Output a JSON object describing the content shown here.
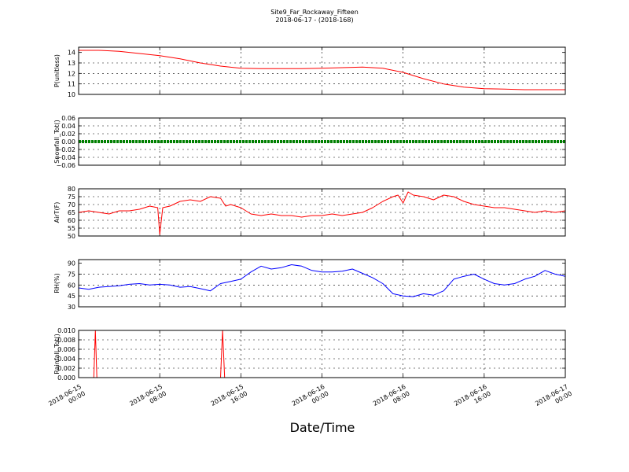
{
  "title_lines": [
    "Site9_Far_Rockaway_Fifteen",
    "2018-06-17 - (2018-168)"
  ],
  "xlabel": "Date/Time",
  "x_ticks": [
    {
      "h": 0,
      "line1": "2018-06-15",
      "line2": "00:00"
    },
    {
      "h": 8,
      "line1": "2018-06-15",
      "line2": "08:00"
    },
    {
      "h": 16,
      "line1": "2018-06-15",
      "line2": "16:00"
    },
    {
      "h": 24,
      "line1": "2018-06-16",
      "line2": "00:00"
    },
    {
      "h": 32,
      "line1": "2018-06-16",
      "line2": "08:00"
    },
    {
      "h": 40,
      "line1": "2018-06-16",
      "line2": "16:00"
    },
    {
      "h": 48,
      "line1": "2018-06-17",
      "line2": "00:00"
    }
  ],
  "chart_data": [
    {
      "type": "line",
      "ylabel": "P(unitless)",
      "color": "#ff0000",
      "ylim": [
        10,
        14.5
      ],
      "yticks": [
        10,
        11,
        12,
        13,
        14
      ],
      "ytick_labels": [
        "10",
        "11",
        "12",
        "13",
        "14"
      ],
      "x_hours": [
        0,
        2,
        4,
        6,
        8,
        10,
        12,
        14,
        16,
        18,
        20,
        22,
        24,
        26,
        28,
        30,
        32,
        34,
        36,
        38,
        40,
        42,
        44,
        46,
        48
      ],
      "values": [
        14.2,
        14.2,
        14.1,
        13.9,
        13.7,
        13.4,
        13.0,
        12.7,
        12.5,
        12.45,
        12.45,
        12.45,
        12.5,
        12.55,
        12.6,
        12.5,
        12.1,
        11.5,
        11.0,
        10.7,
        10.55,
        10.5,
        10.45,
        10.45,
        10.45
      ]
    },
    {
      "type": "line",
      "ylabel": "Snowfall_Tot()",
      "color": "#008000",
      "ylim": [
        -0.06,
        0.06
      ],
      "yticks": [
        -0.06,
        -0.04,
        -0.02,
        0,
        0.02,
        0.04,
        0.06
      ],
      "ytick_labels": [
        "−0.06",
        "−0.04",
        "−0.02",
        "0.00",
        "0.02",
        "0.04",
        "0.06"
      ],
      "x_hours": [
        0,
        48
      ],
      "values": [
        0,
        0
      ]
    },
    {
      "type": "line",
      "ylabel": "AirT(F)",
      "color": "#ff0000",
      "ylim": [
        50,
        80
      ],
      "yticks": [
        50,
        55,
        60,
        65,
        70,
        75,
        80
      ],
      "ytick_labels": [
        "50",
        "55",
        "60",
        "65",
        "70",
        "75",
        "80"
      ],
      "x_hours": [
        0,
        1,
        2,
        3,
        4,
        5,
        6,
        7,
        7.8,
        8,
        8.3,
        9,
        10,
        11,
        12,
        13,
        14,
        14.5,
        15,
        16,
        17,
        18,
        19,
        20,
        21,
        22,
        23,
        24,
        25,
        26,
        27,
        28,
        29,
        30,
        31,
        31.5,
        32,
        32.5,
        33,
        34,
        35,
        36,
        37,
        38,
        39,
        40,
        41,
        42,
        43,
        44,
        45,
        46,
        47,
        48
      ],
      "values": [
        65,
        66,
        65,
        64,
        66,
        66,
        67,
        69,
        68,
        51,
        68,
        69,
        72,
        73,
        72,
        75,
        74,
        69,
        70,
        68,
        64,
        63,
        64,
        63,
        63,
        62,
        63,
        63,
        64,
        63,
        64,
        65,
        68,
        72,
        75,
        76,
        71,
        78,
        76,
        75,
        73,
        76,
        75,
        72,
        70,
        69,
        68,
        68,
        67,
        66,
        65,
        66,
        65,
        66
      ]
    },
    {
      "type": "line",
      "ylabel": "RH(%)",
      "color": "#0000ff",
      "ylim": [
        30,
        95
      ],
      "yticks": [
        30,
        45,
        60,
        75,
        90
      ],
      "ytick_labels": [
        "30",
        "45",
        "60",
        "75",
        "90"
      ],
      "x_hours": [
        0,
        1,
        2,
        3,
        4,
        5,
        6,
        7,
        8,
        9,
        10,
        11,
        12,
        13,
        14,
        15,
        16,
        17,
        18,
        19,
        20,
        21,
        22,
        23,
        24,
        25,
        26,
        27,
        28,
        29,
        30,
        31,
        32,
        33,
        34,
        35,
        36,
        37,
        38,
        39,
        40,
        41,
        42,
        43,
        44,
        45,
        46,
        47,
        48
      ],
      "values": [
        56,
        54,
        57,
        58,
        59,
        61,
        62,
        60,
        61,
        60,
        57,
        58,
        55,
        52,
        62,
        65,
        68,
        78,
        86,
        82,
        84,
        88,
        86,
        80,
        78,
        78,
        79,
        82,
        76,
        70,
        62,
        48,
        45,
        44,
        48,
        46,
        52,
        68,
        72,
        75,
        68,
        62,
        60,
        62,
        68,
        72,
        80,
        75,
        72
      ]
    },
    {
      "type": "line",
      "ylabel": "Rainfall_Tot()",
      "color": "#ff0000",
      "ylim": [
        0,
        0.01
      ],
      "yticks": [
        0,
        0.002,
        0.004,
        0.006,
        0.008,
        0.01
      ],
      "ytick_labels": [
        "0.000",
        "0.002",
        "0.004",
        "0.006",
        "0.008",
        "0.010"
      ],
      "x_hours": [
        0,
        1.5,
        1.65,
        1.8,
        14,
        14.2,
        14.4,
        48
      ],
      "values": [
        0,
        0,
        0.01,
        0,
        0,
        0.01,
        0,
        0
      ]
    }
  ]
}
